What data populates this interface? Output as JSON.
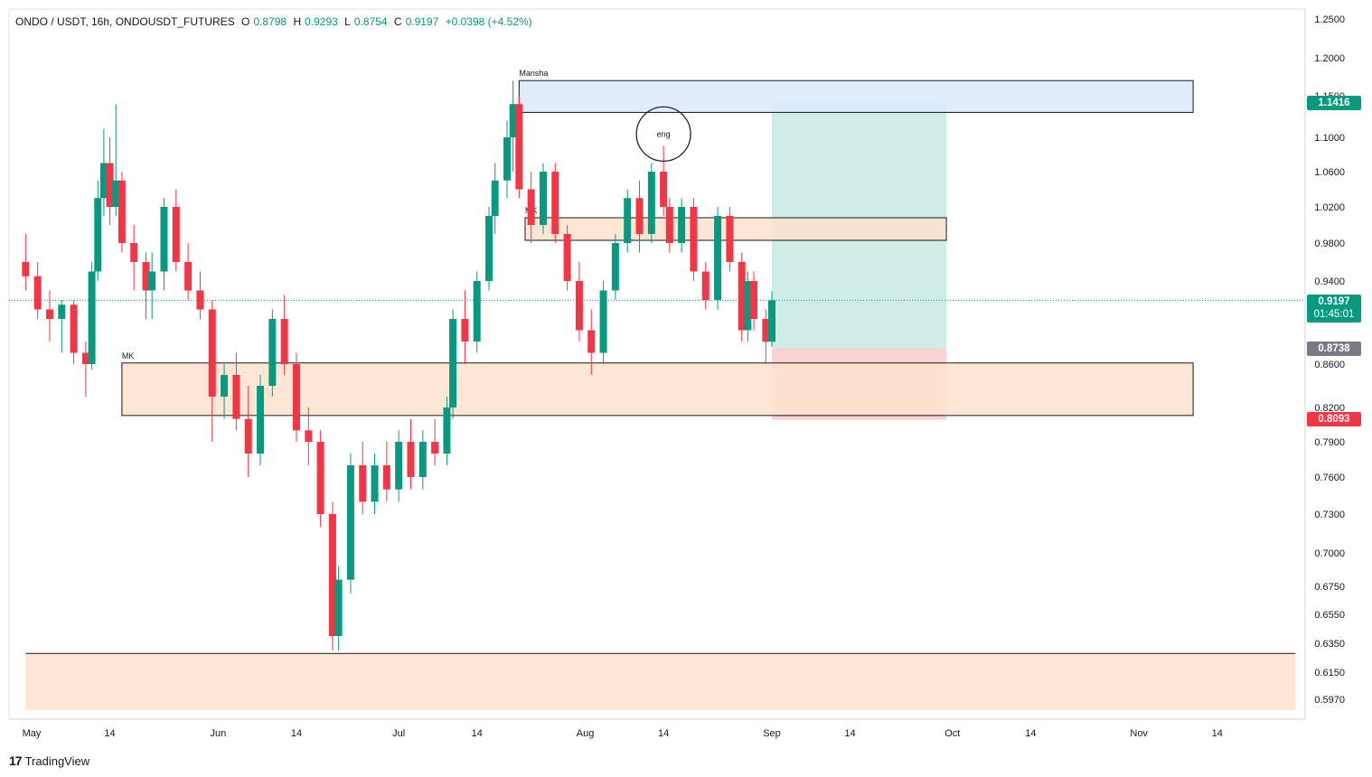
{
  "header": {
    "symbol": "ONDO / USDT, 16h, ONDOUSDT_FUTURES",
    "o_label": "O",
    "o_value": "0.8798",
    "h_label": "H",
    "h_value": "0.9293",
    "l_label": "L",
    "l_value": "0.8754",
    "c_label": "C",
    "c_value": "0.9197",
    "change": "+0.0398 (+4.52%)"
  },
  "branding": {
    "logo_mark": "17",
    "logo_text": "TradingView"
  },
  "colors": {
    "up": "#089981",
    "down": "#f23645",
    "zone_fill": "#fde3cc",
    "supply_fill": "#dbe9fc",
    "target_fill": "#cdebe5",
    "stop_fill": "#fbd0cd",
    "price_line": "#089981"
  },
  "chart_data": {
    "type": "candlestick",
    "title": "ONDO / USDT, 16h, ONDOUSDT_FUTURES",
    "y_ticks": [
      "1.2500",
      "1.2000",
      "1.1500",
      "1.1000",
      "1.0600",
      "1.0200",
      "0.9800",
      "0.9400",
      "0.9000",
      "0.8600",
      "0.8200",
      "0.7900",
      "0.7600",
      "0.7300",
      "0.7000",
      "0.6750",
      "0.6550",
      "0.6350",
      "0.6150",
      "0.5970"
    ],
    "x_ticks": [
      "May",
      "14",
      "Jun",
      "14",
      "Jul",
      "14",
      "Aug",
      "14",
      "Sep",
      "14",
      "Oct",
      "14",
      "Nov",
      "14"
    ],
    "ohlc_summary": {
      "open": 0.8798,
      "high": 0.9293,
      "low": 0.8754,
      "close": 0.9197,
      "change": 0.0398,
      "change_pct": 4.52
    },
    "price_tags": [
      {
        "value": "1.1416",
        "kind": "target"
      },
      {
        "value": "0.9197",
        "kind": "last",
        "countdown": "01:45:01"
      },
      {
        "value": "0.8738",
        "kind": "entry"
      },
      {
        "value": "0.8093",
        "kind": "stop"
      }
    ],
    "annotations": [
      {
        "label": "Mansha",
        "kind": "supply-zone",
        "from": "Jul 21",
        "to": "Nov 10",
        "top": 1.17,
        "bottom": 1.13
      },
      {
        "label": "MK",
        "kind": "demand-zone",
        "from": "Jul 22",
        "to": "Sep 30",
        "top": 1.008,
        "bottom": 0.983
      },
      {
        "label": "MK",
        "kind": "demand-zone",
        "from": "May 16",
        "to": "Nov 10",
        "top": 0.861,
        "bottom": 0.813
      },
      {
        "label": "",
        "kind": "demand-zone",
        "from": "Apr 30",
        "to": "Nov 27",
        "top": 0.628,
        "bottom": 0.59
      },
      {
        "label": "eng",
        "kind": "circle",
        "date": "Aug 14",
        "price": 1.104
      }
    ],
    "position": {
      "type": "long",
      "from": "Sep 1",
      "to": "Sep 30",
      "entry": 0.8738,
      "target": 1.1416,
      "stop": 0.8093
    },
    "candles_approx": [
      {
        "d": "Apr 30",
        "o": 0.96,
        "h": 0.99,
        "l": 0.93,
        "c": 0.945
      },
      {
        "d": "May 2",
        "o": 0.945,
        "h": 0.96,
        "l": 0.9,
        "c": 0.91
      },
      {
        "d": "May 4",
        "o": 0.91,
        "h": 0.93,
        "l": 0.88,
        "c": 0.9
      },
      {
        "d": "May 6",
        "o": 0.9,
        "h": 0.92,
        "l": 0.87,
        "c": 0.915
      },
      {
        "d": "May 8",
        "o": 0.915,
        "h": 0.92,
        "l": 0.86,
        "c": 0.87
      },
      {
        "d": "May 10",
        "o": 0.87,
        "h": 0.88,
        "l": 0.83,
        "c": 0.86
      },
      {
        "d": "May 11",
        "o": 0.86,
        "h": 0.96,
        "l": 0.855,
        "c": 0.95
      },
      {
        "d": "May 12",
        "o": 0.95,
        "h": 1.05,
        "l": 0.94,
        "c": 1.03
      },
      {
        "d": "May 13",
        "o": 1.03,
        "h": 1.11,
        "l": 1.01,
        "c": 1.07
      },
      {
        "d": "May 14",
        "o": 1.07,
        "h": 1.1,
        "l": 1.0,
        "c": 1.02
      },
      {
        "d": "May 15",
        "o": 1.02,
        "h": 1.14,
        "l": 1.01,
        "c": 1.05
      },
      {
        "d": "May 16",
        "o": 1.05,
        "h": 1.06,
        "l": 0.97,
        "c": 0.98
      },
      {
        "d": "May 18",
        "o": 0.98,
        "h": 1.0,
        "l": 0.93,
        "c": 0.96
      },
      {
        "d": "May 20",
        "o": 0.96,
        "h": 0.97,
        "l": 0.9,
        "c": 0.93
      },
      {
        "d": "May 21",
        "o": 0.93,
        "h": 0.97,
        "l": 0.9,
        "c": 0.95
      },
      {
        "d": "May 23",
        "o": 0.95,
        "h": 1.03,
        "l": 0.93,
        "c": 1.02
      },
      {
        "d": "May 25",
        "o": 1.02,
        "h": 1.04,
        "l": 0.95,
        "c": 0.96
      },
      {
        "d": "May 27",
        "o": 0.96,
        "h": 0.98,
        "l": 0.92,
        "c": 0.93
      },
      {
        "d": "May 29",
        "o": 0.93,
        "h": 0.95,
        "l": 0.9,
        "c": 0.91
      },
      {
        "d": "May 31",
        "o": 0.91,
        "h": 0.92,
        "l": 0.79,
        "c": 0.83
      },
      {
        "d": "Jun 2",
        "o": 0.83,
        "h": 0.86,
        "l": 0.81,
        "c": 0.85
      },
      {
        "d": "Jun 4",
        "o": 0.85,
        "h": 0.87,
        "l": 0.8,
        "c": 0.81
      },
      {
        "d": "Jun 6",
        "o": 0.81,
        "h": 0.84,
        "l": 0.76,
        "c": 0.78
      },
      {
        "d": "Jun 8",
        "o": 0.78,
        "h": 0.85,
        "l": 0.77,
        "c": 0.84
      },
      {
        "d": "Jun 10",
        "o": 0.84,
        "h": 0.91,
        "l": 0.83,
        "c": 0.9
      },
      {
        "d": "Jun 12",
        "o": 0.9,
        "h": 0.925,
        "l": 0.85,
        "c": 0.86
      },
      {
        "d": "Jun 14",
        "o": 0.86,
        "h": 0.87,
        "l": 0.79,
        "c": 0.8
      },
      {
        "d": "Jun 16",
        "o": 0.8,
        "h": 0.82,
        "l": 0.77,
        "c": 0.79
      },
      {
        "d": "Jun 18",
        "o": 0.79,
        "h": 0.8,
        "l": 0.72,
        "c": 0.73
      },
      {
        "d": "Jun 20",
        "o": 0.73,
        "h": 0.74,
        "l": 0.63,
        "c": 0.64
      },
      {
        "d": "Jun 21",
        "o": 0.64,
        "h": 0.69,
        "l": 0.63,
        "c": 0.68
      },
      {
        "d": "Jun 23",
        "o": 0.68,
        "h": 0.78,
        "l": 0.67,
        "c": 0.77
      },
      {
        "d": "Jun 25",
        "o": 0.77,
        "h": 0.79,
        "l": 0.73,
        "c": 0.74
      },
      {
        "d": "Jun 27",
        "o": 0.74,
        "h": 0.78,
        "l": 0.73,
        "c": 0.77
      },
      {
        "d": "Jun 29",
        "o": 0.77,
        "h": 0.79,
        "l": 0.74,
        "c": 0.75
      },
      {
        "d": "Jul 1",
        "o": 0.75,
        "h": 0.8,
        "l": 0.74,
        "c": 0.79
      },
      {
        "d": "Jul 3",
        "o": 0.79,
        "h": 0.81,
        "l": 0.75,
        "c": 0.76
      },
      {
        "d": "Jul 5",
        "o": 0.76,
        "h": 0.8,
        "l": 0.75,
        "c": 0.79
      },
      {
        "d": "Jul 7",
        "o": 0.79,
        "h": 0.81,
        "l": 0.77,
        "c": 0.78
      },
      {
        "d": "Jul 9",
        "o": 0.78,
        "h": 0.83,
        "l": 0.77,
        "c": 0.82
      },
      {
        "d": "Jul 10",
        "o": 0.82,
        "h": 0.91,
        "l": 0.81,
        "c": 0.9
      },
      {
        "d": "Jul 12",
        "o": 0.9,
        "h": 0.93,
        "l": 0.86,
        "c": 0.88
      },
      {
        "d": "Jul 14",
        "o": 0.88,
        "h": 0.95,
        "l": 0.87,
        "c": 0.94
      },
      {
        "d": "Jul 16",
        "o": 0.94,
        "h": 1.02,
        "l": 0.93,
        "c": 1.01
      },
      {
        "d": "Jul 17",
        "o": 1.01,
        "h": 1.07,
        "l": 0.99,
        "c": 1.05
      },
      {
        "d": "Jul 19",
        "o": 1.05,
        "h": 1.12,
        "l": 1.03,
        "c": 1.1
      },
      {
        "d": "Jul 20",
        "o": 1.1,
        "h": 1.17,
        "l": 1.06,
        "c": 1.14
      },
      {
        "d": "Jul 21",
        "o": 1.14,
        "h": 1.15,
        "l": 1.03,
        "c": 1.04
      },
      {
        "d": "Jul 23",
        "o": 1.04,
        "h": 1.06,
        "l": 0.98,
        "c": 1.0
      },
      {
        "d": "Jul 25",
        "o": 1.0,
        "h": 1.07,
        "l": 0.99,
        "c": 1.06
      },
      {
        "d": "Jul 27",
        "o": 1.06,
        "h": 1.07,
        "l": 0.98,
        "c": 0.99
      },
      {
        "d": "Jul 29",
        "o": 0.99,
        "h": 1.0,
        "l": 0.93,
        "c": 0.94
      },
      {
        "d": "Jul 31",
        "o": 0.94,
        "h": 0.96,
        "l": 0.88,
        "c": 0.89
      },
      {
        "d": "Aug 2",
        "o": 0.89,
        "h": 0.91,
        "l": 0.85,
        "c": 0.87
      },
      {
        "d": "Aug 4",
        "o": 0.87,
        "h": 0.94,
        "l": 0.86,
        "c": 0.93
      },
      {
        "d": "Aug 6",
        "o": 0.93,
        "h": 0.99,
        "l": 0.92,
        "c": 0.98
      },
      {
        "d": "Aug 8",
        "o": 0.98,
        "h": 1.04,
        "l": 0.97,
        "c": 1.03
      },
      {
        "d": "Aug 10",
        "o": 1.03,
        "h": 1.05,
        "l": 0.97,
        "c": 0.99
      },
      {
        "d": "Aug 12",
        "o": 0.99,
        "h": 1.07,
        "l": 0.98,
        "c": 1.06
      },
      {
        "d": "Aug 14",
        "o": 1.06,
        "h": 1.09,
        "l": 1.01,
        "c": 1.02
      },
      {
        "d": "Aug 15",
        "o": 1.02,
        "h": 1.03,
        "l": 0.97,
        "c": 0.98
      },
      {
        "d": "Aug 17",
        "o": 0.98,
        "h": 1.03,
        "l": 0.97,
        "c": 1.02
      },
      {
        "d": "Aug 19",
        "o": 1.02,
        "h": 1.03,
        "l": 0.94,
        "c": 0.95
      },
      {
        "d": "Aug 21",
        "o": 0.95,
        "h": 0.96,
        "l": 0.91,
        "c": 0.92
      },
      {
        "d": "Aug 23",
        "o": 0.92,
        "h": 1.02,
        "l": 0.91,
        "c": 1.01
      },
      {
        "d": "Aug 25",
        "o": 1.01,
        "h": 1.02,
        "l": 0.95,
        "c": 0.96
      },
      {
        "d": "Aug 27",
        "o": 0.96,
        "h": 0.97,
        "l": 0.88,
        "c": 0.89
      },
      {
        "d": "Aug 28",
        "o": 0.89,
        "h": 0.95,
        "l": 0.88,
        "c": 0.94
      },
      {
        "d": "Aug 29",
        "o": 0.94,
        "h": 0.95,
        "l": 0.89,
        "c": 0.9
      },
      {
        "d": "Aug 31",
        "o": 0.9,
        "h": 0.91,
        "l": 0.86,
        "c": 0.8798
      },
      {
        "d": "Sep 1",
        "o": 0.8798,
        "h": 0.9293,
        "l": 0.8754,
        "c": 0.9197
      }
    ]
  }
}
